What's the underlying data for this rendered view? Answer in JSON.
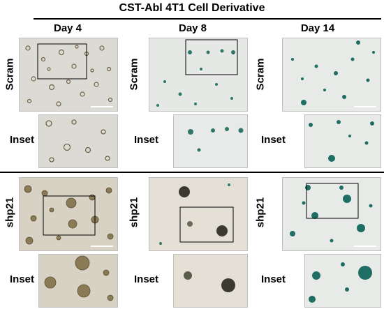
{
  "title": "CST-Abl 4T1 Cell Derivative",
  "columns": [
    "Day 4",
    "Day 8",
    "Day 14"
  ],
  "rows": [
    {
      "label": "Scram",
      "inset_label": "Inset"
    },
    {
      "label": "shp21",
      "inset_label": "Inset"
    }
  ],
  "colors": {
    "background_scram": "#dcdad5",
    "background_shp21_day4": "#d8d2c4",
    "colony_day4": "#8a7a55",
    "colony_stained": "#1f6e63",
    "colony_dark": "#3a3a30"
  }
}
